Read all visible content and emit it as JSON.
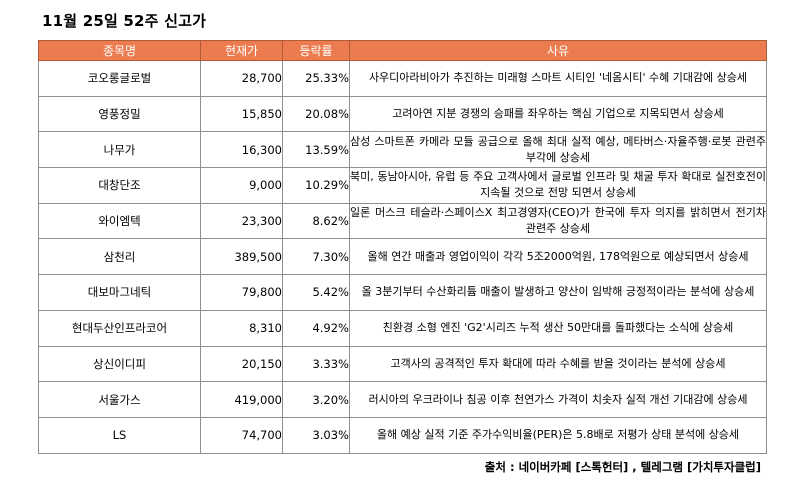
{
  "title": "11월 25일 52주 신고가",
  "table": {
    "headers": {
      "name": "종목명",
      "price": "현재가",
      "change": "등락률",
      "reason": "사유"
    },
    "rows": [
      {
        "name": "코오롱글로벌",
        "price": "28,700",
        "change": "25.33%",
        "reason": "사우디아라비아가 추진하는 미래형 스마트 시티인 '네옴시티' 수혜 기대감에 상승세"
      },
      {
        "name": "영풍정밀",
        "price": "15,850",
        "change": "20.08%",
        "reason": "고려아연 지분 경쟁의 승패를 좌우하는 핵심 기업으로 지목되면서 상승세"
      },
      {
        "name": "나무가",
        "price": "16,300",
        "change": "13.59%",
        "reason": "삼성 스마트폰 카메라 모듈 공급으로 올해 최대 실적 예상, 메타버스·자율주행·로봇 관련주 부각에 상승세"
      },
      {
        "name": "대창단조",
        "price": "9,000",
        "change": "10.29%",
        "reason": "북미, 동남아시아, 유럽 등 주요 고객사에서 글로벌 인프라 및 채굴 투자 확대로 실전호전이 지속될 것으로 전망 되면서 상승세"
      },
      {
        "name": "와이엠텍",
        "price": "23,300",
        "change": "8.62%",
        "reason": "일론 머스크 테슬라·스페이스X 최고경영자(CEO)가 한국에 투자 의지를 밝히면서 전기차 관련주 상승세"
      },
      {
        "name": "삼천리",
        "price": "389,500",
        "change": "7.30%",
        "reason": "올해 연간 매출과 영업이익이 각각 5조2000억원, 178억원으로 예상되면서 상승세"
      },
      {
        "name": "대보마그네틱",
        "price": "79,800",
        "change": "5.42%",
        "reason": "올 3분기부터 수산화리튬 매출이 발생하고 양산이 임박해 긍정적이라는 분석에 상승세"
      },
      {
        "name": "현대두산인프라코어",
        "price": "8,310",
        "change": "4.92%",
        "reason": "친환경 소형 엔진 'G2'시리즈 누적 생산 50만대를 돌파했다는 소식에 상승세"
      },
      {
        "name": "상신이디피",
        "price": "20,150",
        "change": "3.33%",
        "reason": "고객사의 공격적인 투자 확대에 따라 수혜를 받을 것이라는 분석에 상승세"
      },
      {
        "name": "서울가스",
        "price": "419,000",
        "change": "3.20%",
        "reason": "러시아의 우크라이나 침공 이후 천연가스 가격이 치솟자 실적 개선 기대감에 상승세"
      },
      {
        "name": "LS",
        "price": "74,700",
        "change": "3.03%",
        "reason": "올해 예상 실적 기준 주가수익비율(PER)은 5.8배로 저평가 상태 분석에 상승세"
      }
    ]
  },
  "source": "출처 : 네이버카페 [스톡헌터] , 텔레그램 [가치투자클럽]",
  "colors": {
    "header_bg": "#ec7c4f",
    "header_text": "#ffffff",
    "border": "#8f8f8f"
  }
}
